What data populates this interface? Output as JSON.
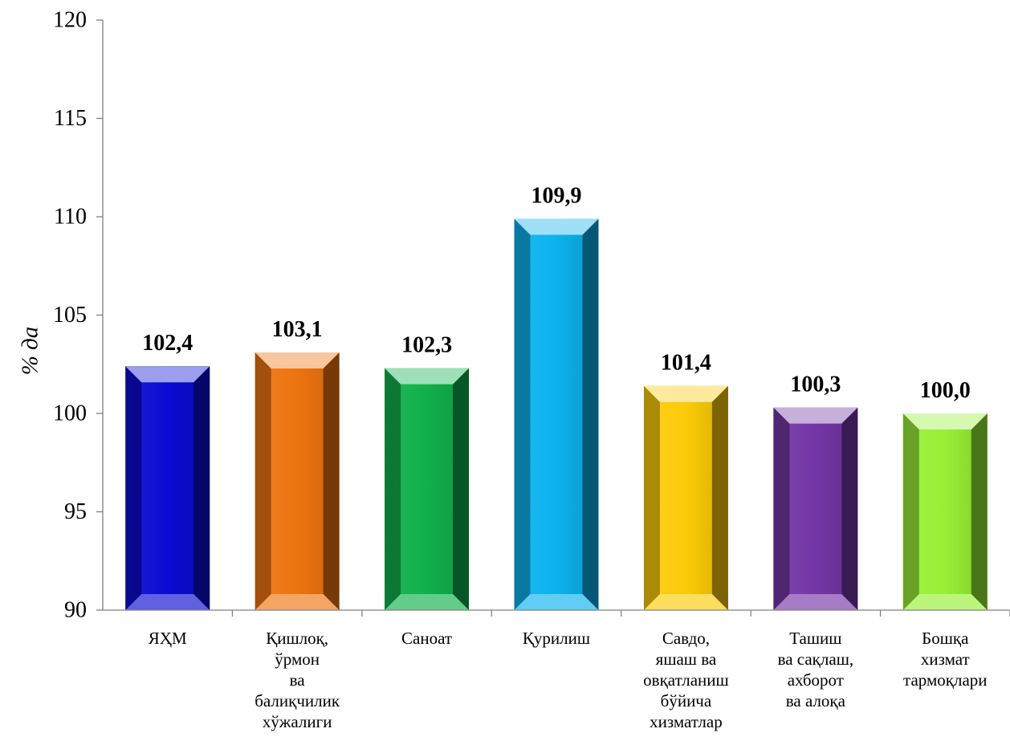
{
  "chart_data": {
    "type": "bar",
    "title": "",
    "xlabel": "",
    "ylabel": "% да",
    "ylim": [
      90,
      120
    ],
    "y_ticks": [
      90,
      95,
      100,
      105,
      110,
      115,
      120
    ],
    "grid": false,
    "legend": "none",
    "bar_style": "beveled",
    "categories": [
      "ЯҲМ",
      "Қишлоқ,\nўрмон\nва\nбалиқчилик\nхўжалиги",
      "Саноат",
      "Қурилиш",
      "Савдо,\nяшаш ва\nовқатланиш\nбўйича\nхизматлар",
      "Ташиш\nва сақлаш,\nахборот\nва алоқа",
      "Бошқа\nхизмат\nтармоқлари"
    ],
    "values": [
      102.4,
      103.1,
      102.3,
      109.9,
      101.4,
      100.3,
      100.0
    ],
    "value_labels": [
      "102,4",
      "103,1",
      "102,3",
      "109,9",
      "101,4",
      "100,3",
      "100,0"
    ],
    "colors": [
      "#0a0ad2",
      "#ee7410",
      "#10b04c",
      "#0cb2ee",
      "#fccb08",
      "#7436a6",
      "#98f036"
    ]
  }
}
